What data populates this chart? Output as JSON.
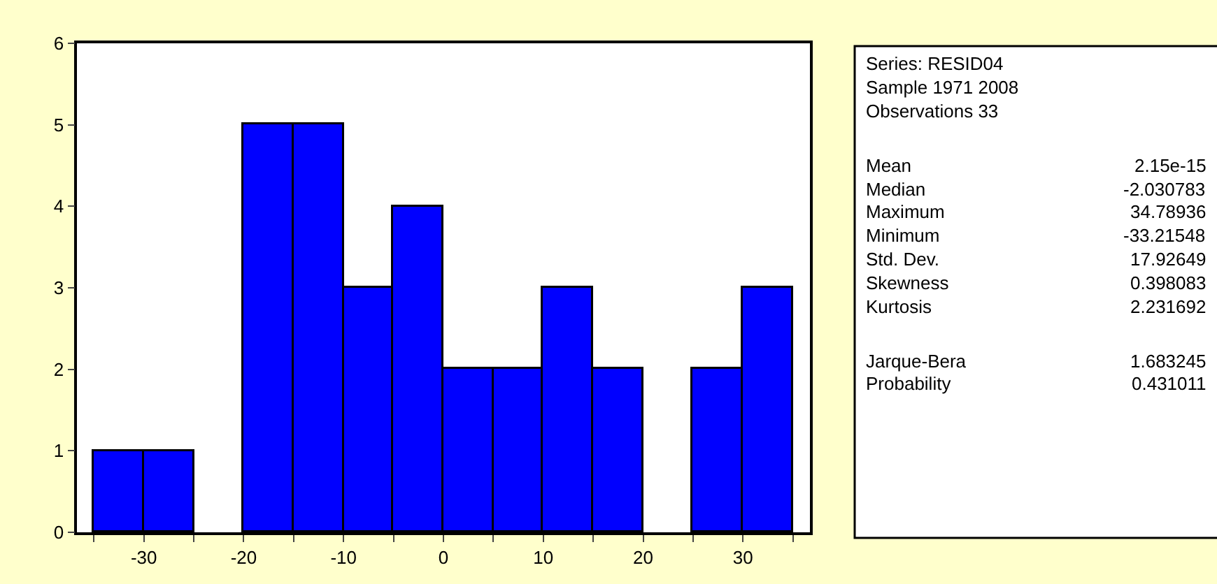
{
  "chart_data": {
    "type": "histogram",
    "bins": [
      -35,
      -30,
      -25,
      -20,
      -15,
      -10,
      -5,
      0,
      5,
      10,
      15,
      20,
      25,
      30,
      35
    ],
    "values": [
      1,
      1,
      0,
      5,
      5,
      3,
      4,
      2,
      2,
      3,
      2,
      0,
      2,
      3
    ],
    "color": "#0000ff",
    "xlim": [
      -36.7,
      36.7
    ],
    "xticks": [
      {
        "value": -35,
        "label": null
      },
      -30,
      {
        "value": -25,
        "label": null
      },
      -20,
      {
        "value": -15,
        "label": null
      },
      -10,
      {
        "value": -5,
        "label": null
      },
      0,
      {
        "value": 5,
        "label": null
      },
      10,
      {
        "value": 15,
        "label": null
      },
      20,
      {
        "value": 25,
        "label": null
      },
      30,
      {
        "value": 35,
        "label": null
      }
    ],
    "ylim": [
      0,
      6
    ],
    "yticks": [
      0,
      1,
      2,
      3,
      4,
      5,
      6
    ],
    "annotations": [
      "Series: RESID04",
      "Sample 1971 2008",
      "Observations 33",
      "Mean",
      "2.15e-15",
      "Median",
      "-2.030783",
      "Maximum",
      "34.78936",
      "Minimum",
      "-33.21548",
      "Std. Dev.",
      "17.92649",
      "Skewness",
      "0.398083",
      "Kurtosis",
      "2.231692",
      "Jarque-Bera",
      "1.683245",
      "Probability",
      "0.431011"
    ]
  }
}
